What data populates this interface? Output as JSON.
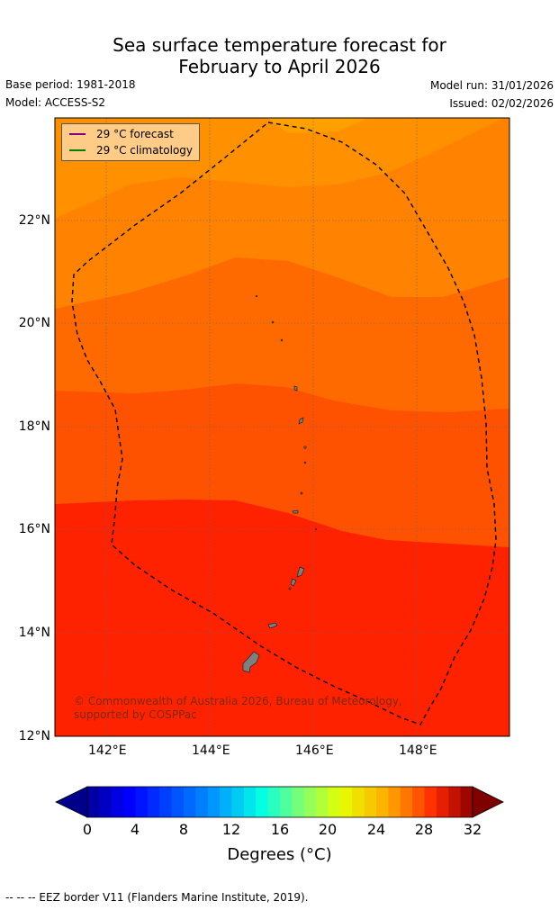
{
  "title_line1": "Sea surface temperature forecast for",
  "title_line2": "February to April 2026",
  "base_period": "Base period: 1981-2018",
  "model": "Model: ACCESS-S2",
  "model_run": "Model run: 31/01/2026",
  "issued": "Issued: 02/02/2026",
  "legend": {
    "forecast_label": "29 °C  forecast",
    "forecast_color": "#800080",
    "climatology_label": "29 °C  climatology",
    "climatology_color": "#008000"
  },
  "map": {
    "lon_range": [
      141.0,
      149.8
    ],
    "lat_range": [
      12.0,
      24.0
    ],
    "lat_ticks": [
      "22°N",
      "20°N",
      "18°N",
      "16°N",
      "14°N",
      "12°N"
    ],
    "lon_ticks": [
      "142°E",
      "144°E",
      "146°E",
      "148°E"
    ],
    "copyright": "© Commonwealth of Australia 2026, Bureau of Meteorology, supported by COSPPac"
  },
  "colorbar": {
    "ticks": [
      "0",
      "4",
      "8",
      "12",
      "16",
      "20",
      "24",
      "28",
      "32"
    ],
    "title": "Degrees (°C)"
  },
  "footer": "--  --  -- EEZ border V11 (Flanders Marine Institute, 2019)."
}
